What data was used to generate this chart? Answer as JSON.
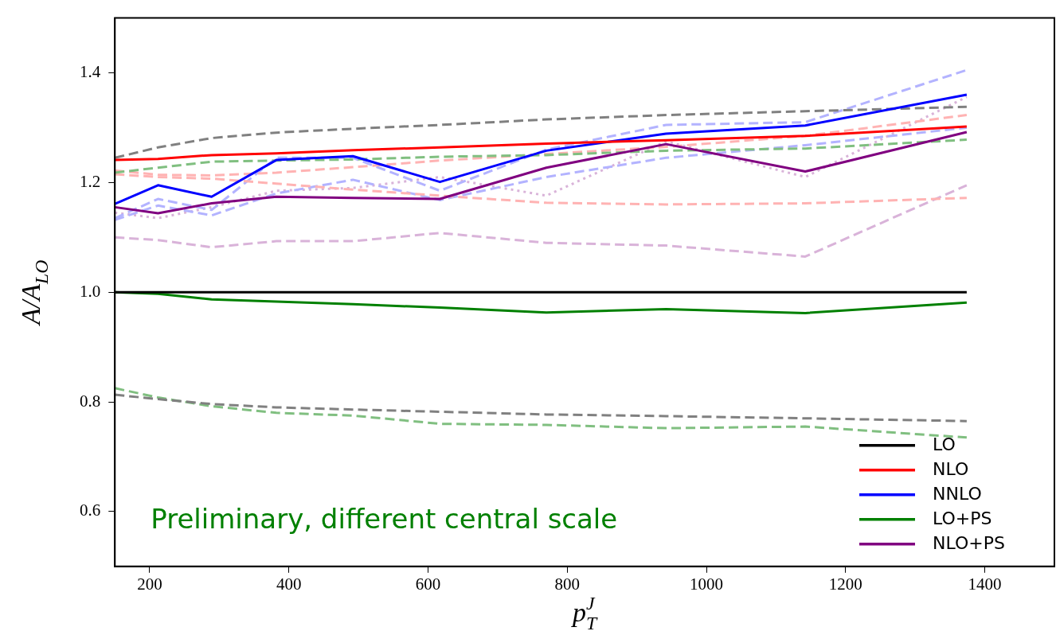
{
  "chart_data": {
    "type": "line",
    "xlabel": "p$_{T}$$^{J}$",
    "ylabel": "A/A$_{LO}$",
    "x": [
      150,
      212,
      289,
      382,
      492,
      617,
      770,
      942,
      1142,
      1374
    ],
    "xlim": [
      150,
      1500
    ],
    "xticks": [
      200,
      400,
      600,
      800,
      1000,
      1200,
      1400
    ],
    "ylim": [
      0.5,
      1.5
    ],
    "yticks": [
      0.6,
      0.8,
      {
        "value": 1,
        "label": "1.0"
      },
      1.2,
      1.4
    ],
    "grid": false,
    "legend": "bottom right",
    "marker": "none",
    "annotations": [
      "Preliminary, different central scale"
    ],
    "series": [
      {
        "name": "LO",
        "color": "#000000",
        "line_style": "solid",
        "values": [
          1,
          1,
          1,
          1,
          1,
          1,
          1,
          1,
          1,
          1
        ]
      },
      {
        "name": "NLO",
        "color": "#ff0000",
        "line_style": "solid",
        "values": [
          1.241,
          1.243,
          1.25,
          1.253,
          1.259,
          1.264,
          1.271,
          1.277,
          1.285,
          1.302
        ]
      },
      {
        "name": "NNLO",
        "color": "#0000ff",
        "line_style": "solid",
        "values": [
          1.161,
          1.195,
          1.174,
          1.241,
          1.248,
          1.201,
          1.258,
          1.289,
          1.304,
          1.36
        ]
      },
      {
        "name": "LO+PS",
        "color": "#008000",
        "line_style": "solid",
        "values": [
          1.0,
          0.997,
          0.987,
          0.983,
          0.978,
          0.972,
          0.963,
          0.969,
          0.962,
          0.981
        ]
      },
      {
        "name": "NLO+PS",
        "color": "#800080",
        "line_style": "solid",
        "values": [
          1.155,
          1.144,
          1.162,
          1.174,
          1.172,
          1.17,
          1.227,
          1.27,
          1.22,
          1.292
        ]
      },
      {
        "color": "#808080",
        "line_style": "dashed",
        "values": [
          1.245,
          1.264,
          1.281,
          1.291,
          1.298,
          1.305,
          1.315,
          1.323,
          1.33,
          1.338
        ]
      },
      {
        "color": "#808080",
        "line_style": "dashed",
        "values": [
          0.813,
          0.805,
          0.796,
          0.79,
          0.786,
          0.782,
          0.777,
          0.774,
          0.77,
          0.765
        ]
      },
      {
        "color": "#80bf80",
        "line_style": "dashed",
        "values": [
          1.218,
          1.227,
          1.238,
          1.24,
          1.242,
          1.247,
          1.25,
          1.258,
          1.262,
          1.278
        ]
      },
      {
        "color": "#80bf80",
        "line_style": "dashed",
        "values": [
          0.825,
          0.808,
          0.792,
          0.78,
          0.775,
          0.76,
          0.758,
          0.752,
          0.755,
          0.735
        ]
      },
      {
        "color": "#ffb3b3",
        "line_style": "dashed",
        "values": [
          1.222,
          1.214,
          1.213,
          1.218,
          1.228,
          1.24,
          1.252,
          1.265,
          1.285,
          1.323
        ]
      },
      {
        "color": "#ffb3b3",
        "line_style": "dashed",
        "values": [
          1.215,
          1.21,
          1.207,
          1.198,
          1.187,
          1.176,
          1.163,
          1.16,
          1.162,
          1.172
        ]
      },
      {
        "color": "#b3b3ff",
        "line_style": "dashed",
        "values": [
          1.135,
          1.17,
          1.15,
          1.245,
          1.245,
          1.185,
          1.26,
          1.305,
          1.31,
          1.405
        ]
      },
      {
        "color": "#b3b3ff",
        "line_style": "dashed",
        "values": [
          1.132,
          1.158,
          1.14,
          1.18,
          1.205,
          1.168,
          1.21,
          1.245,
          1.268,
          1.3
        ]
      },
      {
        "color": "#d9b3d9",
        "line_style": "dotted",
        "values": [
          1.145,
          1.135,
          1.155,
          1.185,
          1.19,
          1.21,
          1.176,
          1.275,
          1.21,
          1.356
        ]
      },
      {
        "color": "#d9b3d9",
        "line_style": "dashed",
        "values": [
          1.1,
          1.095,
          1.082,
          1.093,
          1.093,
          1.108,
          1.09,
          1.085,
          1.065,
          1.195
        ]
      }
    ]
  }
}
